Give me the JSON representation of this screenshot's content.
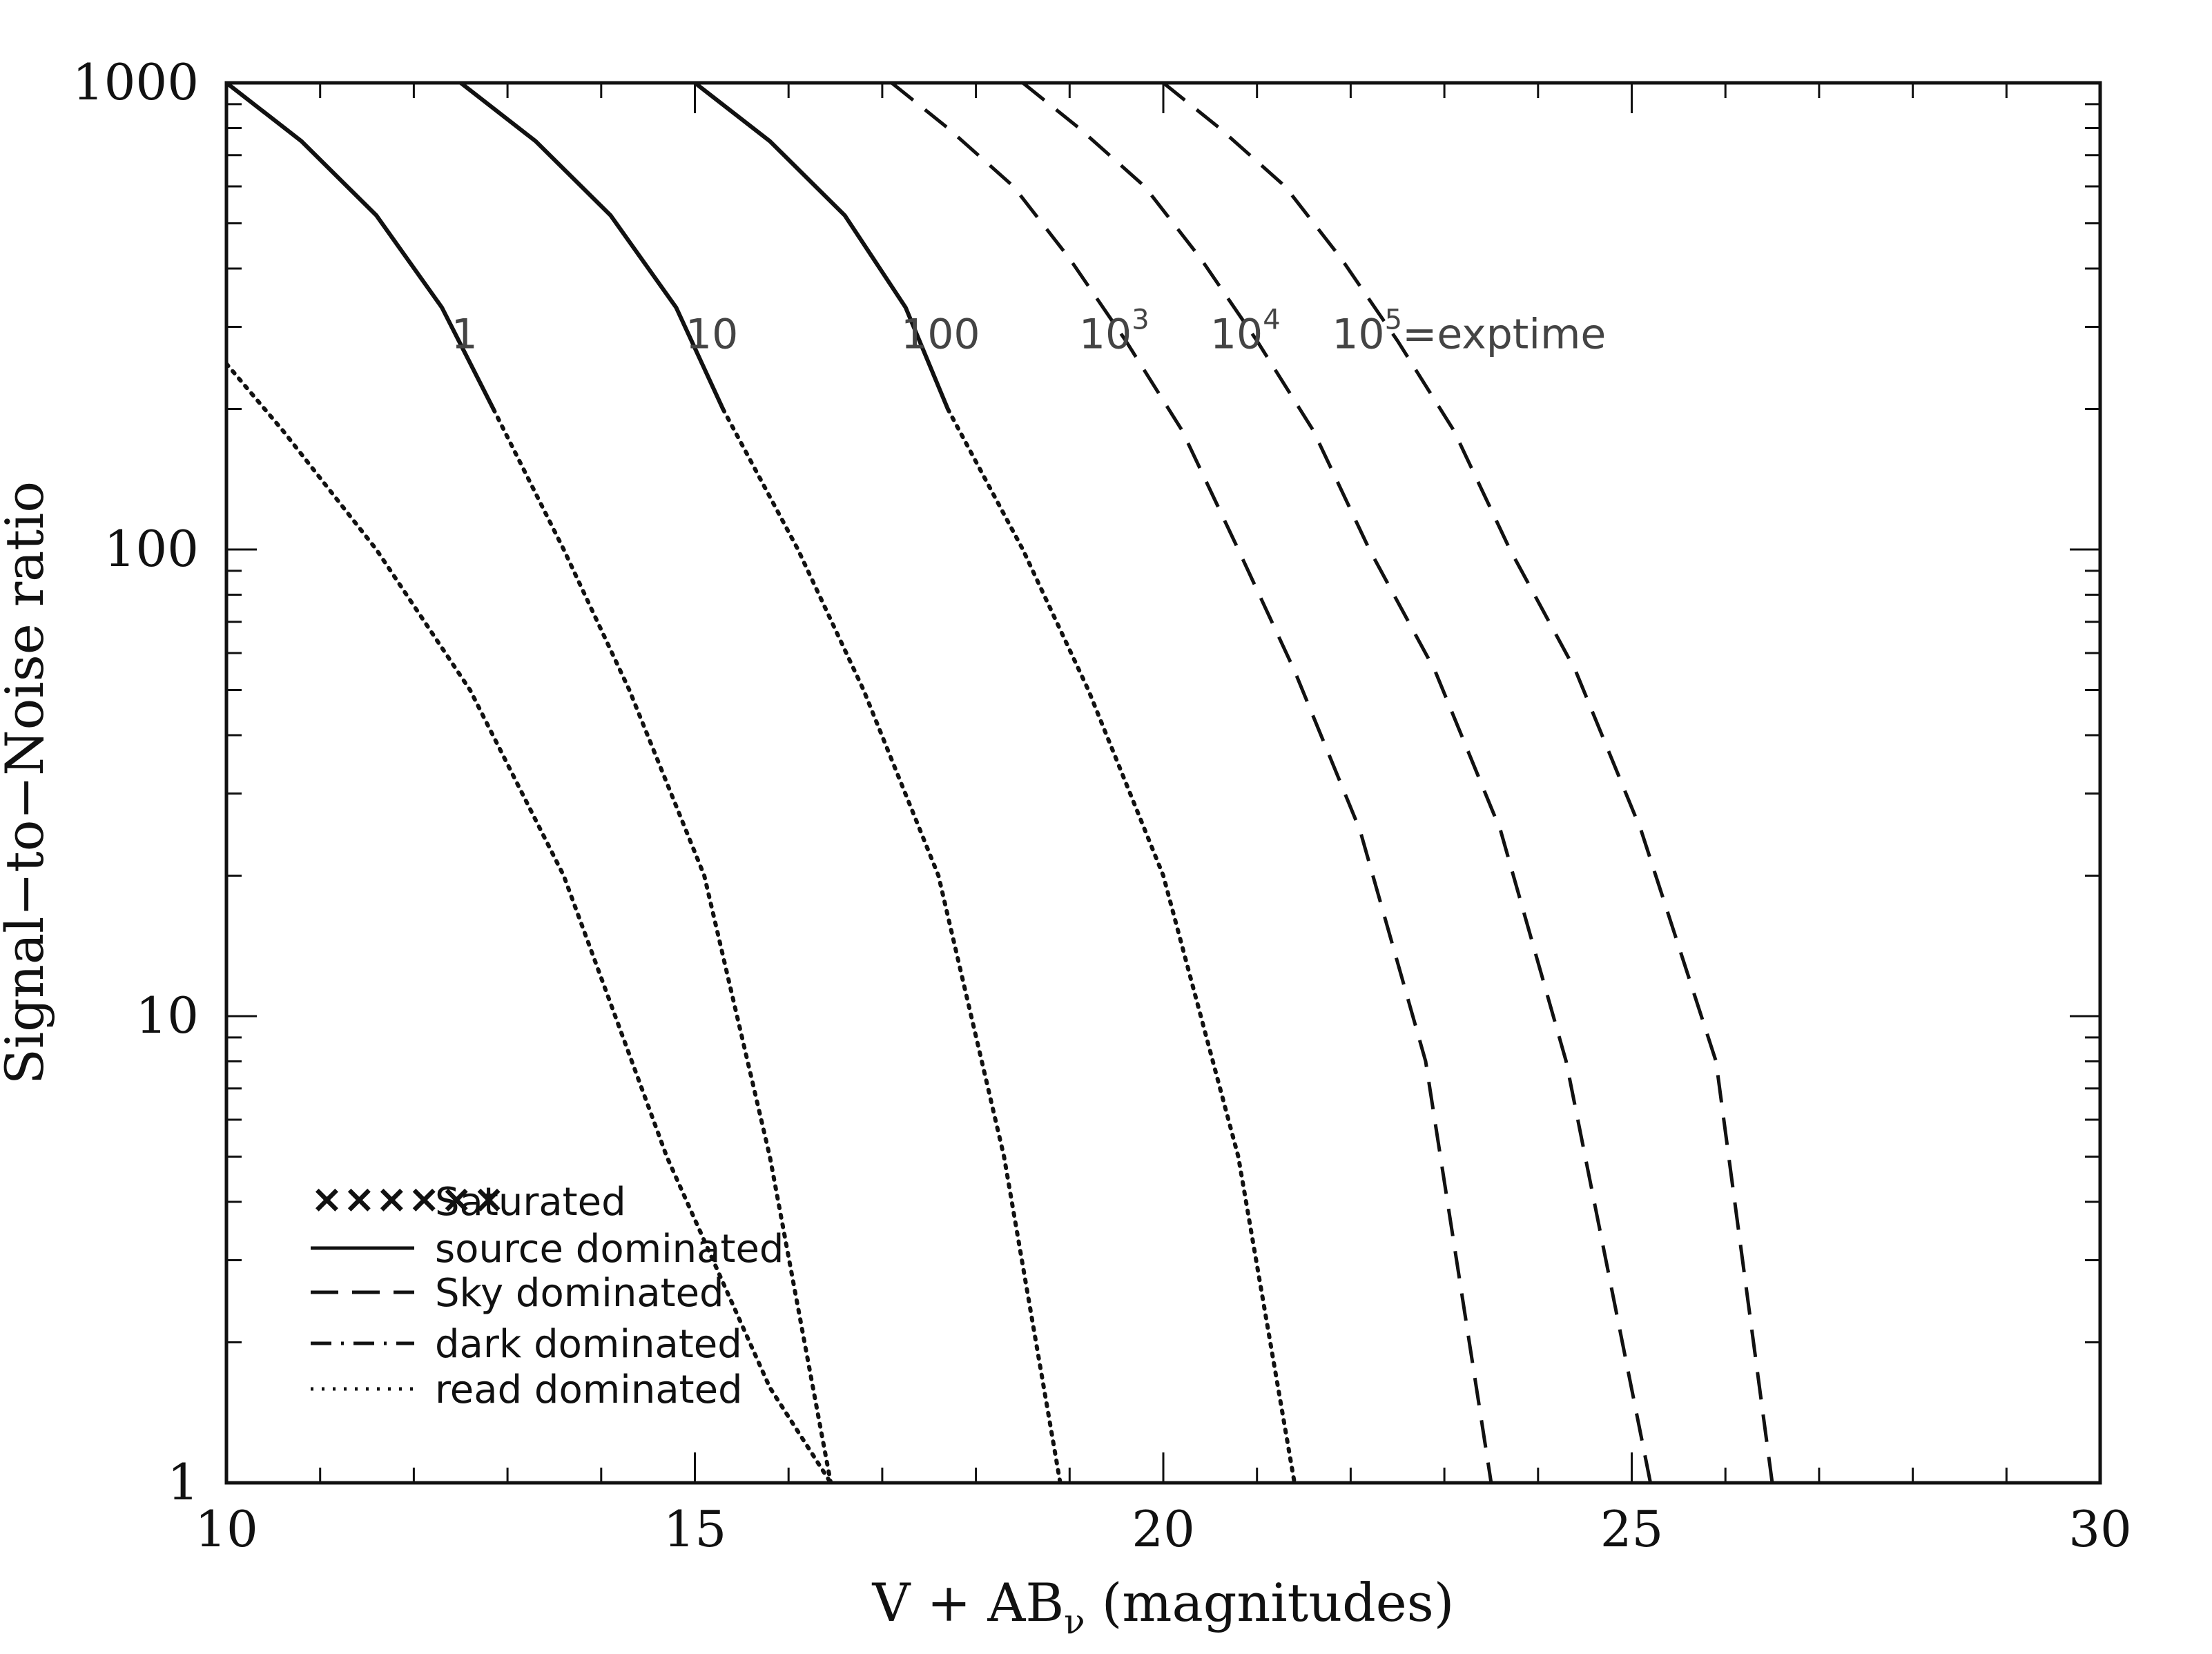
{
  "chart_data": {
    "type": "line",
    "title": "",
    "xlabel": "V + AB",
    "xlabel_sub": "ν",
    "xlabel_suffix": " (magnitudes)",
    "ylabel": "Signal−to−Noise ratio",
    "xlim": [
      10,
      30
    ],
    "ylim": [
      1,
      1000
    ],
    "yscale": "log",
    "x_ticks": [
      10,
      15,
      20,
      25,
      30
    ],
    "x_tick_labels": [
      "10",
      "15",
      "20",
      "25",
      "30"
    ],
    "y_ticks": [
      1,
      10,
      100,
      1000
    ],
    "y_tick_labels": [
      "1",
      "10",
      "100",
      "1000"
    ],
    "grid": false,
    "legend_position": "bottom-left",
    "legend": [
      {
        "symbol": "××××××",
        "style": "saturated",
        "label": "Saturated"
      },
      {
        "style": "solid",
        "label": "source dominated"
      },
      {
        "style": "dashed",
        "label": "Sky dominated"
      },
      {
        "style": "dashdot",
        "label": "dark dominated"
      },
      {
        "style": "dotted",
        "label": "read dominated"
      }
    ],
    "series": [
      {
        "label": "1",
        "label_sup": "",
        "label_x": 12.4,
        "label_y": 270,
        "points": [
          [
            10.0,
            1000
          ],
          [
            10.8,
            750
          ],
          [
            11.6,
            520
          ],
          [
            12.3,
            330
          ],
          [
            12.85,
            200
          ],
          [
            13.6,
            100
          ],
          [
            14.3,
            50
          ],
          [
            15.1,
            20
          ],
          [
            15.8,
            5
          ],
          [
            16.45,
            1
          ]
        ]
      },
      {
        "label": "10",
        "label_sup": "",
        "label_x": 14.9,
        "label_y": 270,
        "points": [
          [
            12.5,
            1000
          ],
          [
            13.3,
            750
          ],
          [
            14.1,
            520
          ],
          [
            14.8,
            330
          ],
          [
            15.3,
            200
          ],
          [
            16.1,
            100
          ],
          [
            16.8,
            50
          ],
          [
            17.6,
            20
          ],
          [
            18.3,
            5
          ],
          [
            18.9,
            1
          ]
        ]
      },
      {
        "label": "100",
        "label_sup": "",
        "label_x": 17.2,
        "label_y": 270,
        "points": [
          [
            15.0,
            1000
          ],
          [
            15.8,
            750
          ],
          [
            16.6,
            520
          ],
          [
            17.25,
            330
          ],
          [
            17.7,
            200
          ],
          [
            18.5,
            100
          ],
          [
            19.2,
            50
          ],
          [
            20.0,
            20
          ],
          [
            20.8,
            5
          ],
          [
            21.4,
            1
          ]
        ]
      },
      {
        "label": "10",
        "label_sup": "3",
        "label_x": 19.1,
        "label_y": 270,
        "points": [
          [
            17.1,
            1000
          ],
          [
            17.7,
            800
          ],
          [
            18.4,
            600
          ],
          [
            19.0,
            420
          ],
          [
            19.6,
            280
          ],
          [
            20.2,
            180
          ],
          [
            20.8,
            100
          ],
          [
            21.4,
            55
          ],
          [
            22.1,
            25
          ],
          [
            22.8,
            8
          ],
          [
            23.5,
            1
          ]
        ]
      },
      {
        "label": "10",
        "label_sup": "4",
        "label_x": 20.5,
        "label_y": 270,
        "points": [
          [
            18.5,
            1000
          ],
          [
            19.1,
            800
          ],
          [
            19.8,
            600
          ],
          [
            20.4,
            420
          ],
          [
            21.0,
            280
          ],
          [
            21.6,
            180
          ],
          [
            22.2,
            100
          ],
          [
            22.9,
            55
          ],
          [
            23.6,
            25
          ],
          [
            24.3,
            8
          ],
          [
            25.2,
            1
          ]
        ]
      },
      {
        "label": "10",
        "label_sup": "5",
        "label_tail": "=exptime",
        "label_x": 21.8,
        "label_y": 270,
        "points": [
          [
            20.0,
            1000
          ],
          [
            20.6,
            800
          ],
          [
            21.3,
            600
          ],
          [
            21.9,
            420
          ],
          [
            22.5,
            280
          ],
          [
            23.1,
            180
          ],
          [
            23.7,
            100
          ],
          [
            24.4,
            55
          ],
          [
            25.1,
            25
          ],
          [
            25.9,
            8
          ],
          [
            26.5,
            1
          ]
        ]
      }
    ]
  }
}
